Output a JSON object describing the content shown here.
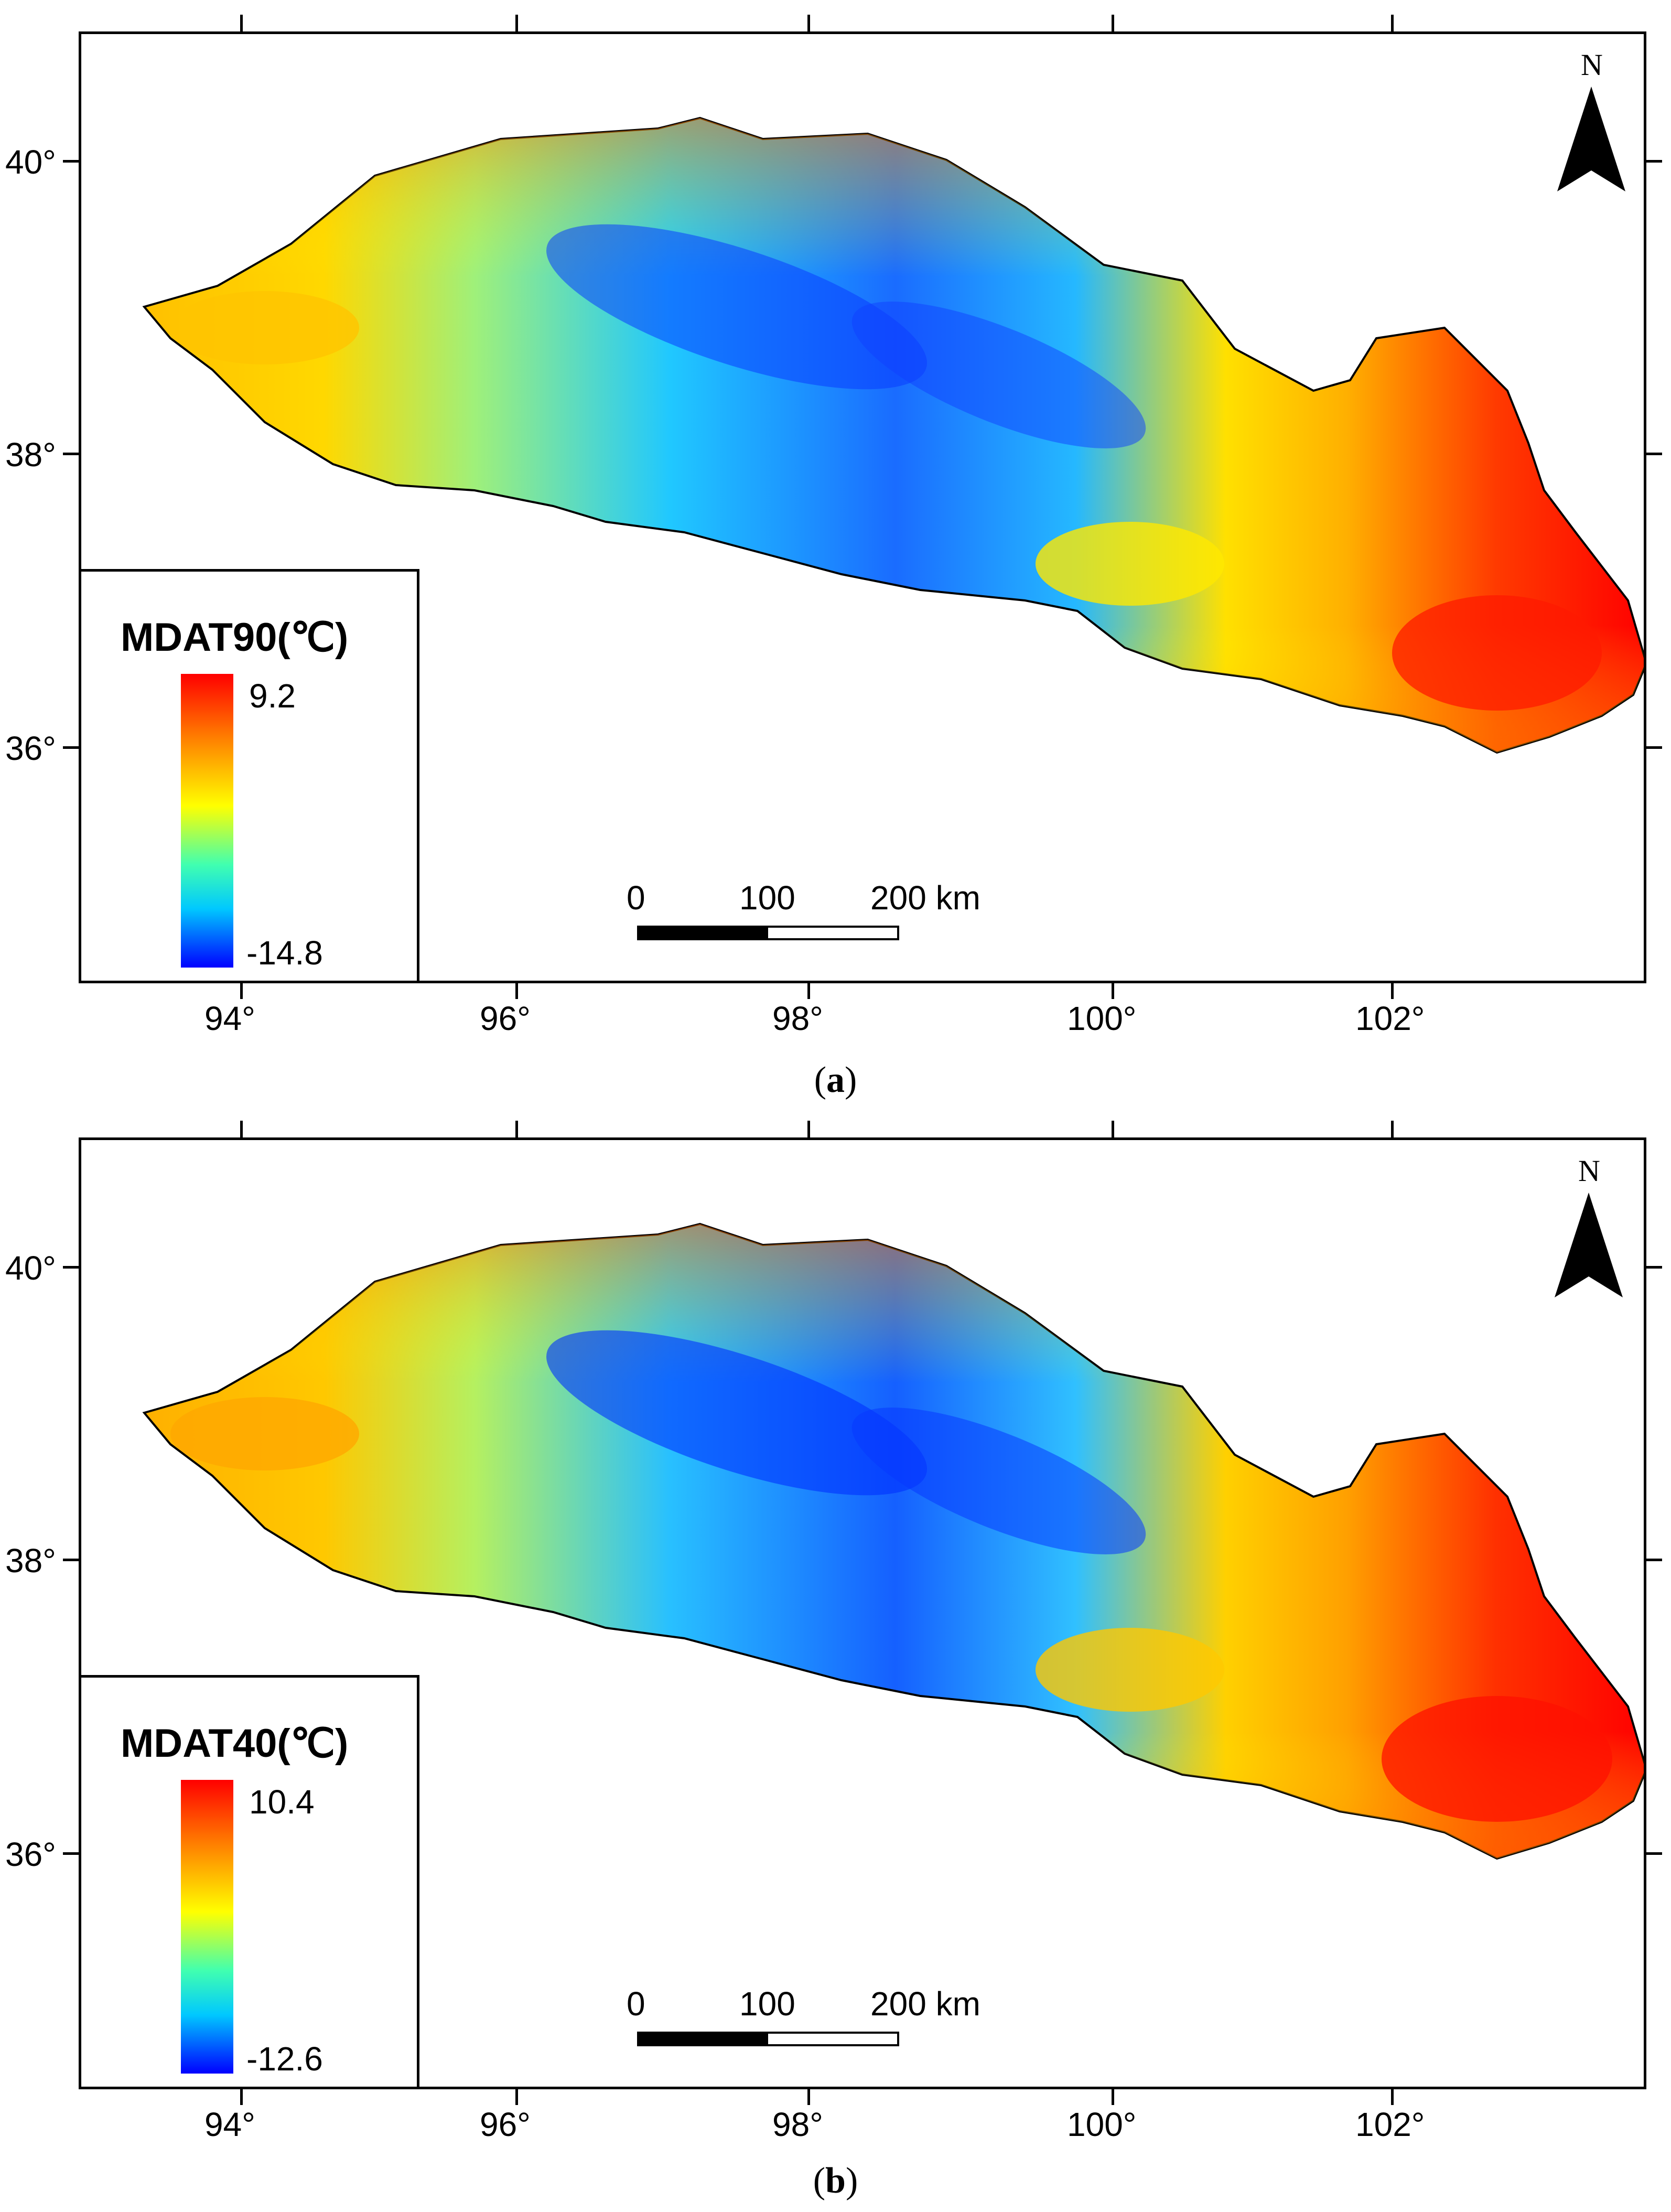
{
  "figure": {
    "panels": [
      {
        "caption": "(a)",
        "caption_letter": "a",
        "legend_title": "MDAT90(℃)",
        "legend_max": "9.2",
        "legend_min": "-14.8"
      },
      {
        "caption": "(b)",
        "caption_letter": "b",
        "legend_title": "MDAT40(℃)",
        "legend_max": "10.4",
        "legend_min": "-12.6"
      }
    ],
    "lat_labels": [
      "40°",
      "38°",
      "36°"
    ],
    "lon_labels": [
      "94°",
      "96°",
      "98°",
      "100°",
      "102°"
    ],
    "north_label": "N",
    "scale_labels": [
      "0",
      "100",
      "200 km"
    ],
    "colors": {
      "hot": "#ff0000",
      "warm": "#ff8000",
      "mid": "#ffff00",
      "cool": "#40ffb0",
      "cold": "#00c8ff",
      "coldest": "#0000ff"
    }
  }
}
